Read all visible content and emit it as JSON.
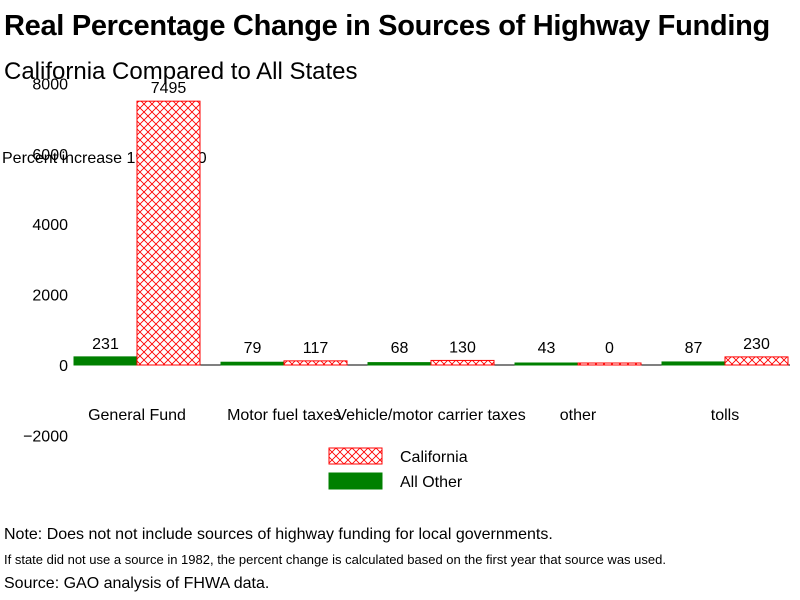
{
  "chart_data": {
    "type": "bar",
    "title": "Real Percentage Change in Sources of Highway Funding",
    "subtitle": "California Compared to All States",
    "ylabel": "Percent increase 1982–2000",
    "categories": [
      "General Fund",
      "Motor fuel taxes",
      "Vehicle/motor carrier taxes",
      "other",
      "tolls"
    ],
    "series": [
      {
        "name": "All Other",
        "values": [
          231,
          79,
          68,
          43,
          87
        ],
        "color": "#008000",
        "pattern": "solid"
      },
      {
        "name": "California",
        "values": [
          7495,
          117,
          130,
          0,
          230
        ],
        "color": "#ff0000",
        "pattern": "crosshatch"
      }
    ],
    "data_labels": {
      "All Other": [
        "231",
        "79",
        "68",
        "43",
        "87"
      ],
      "California": [
        "7495",
        "117",
        "130",
        "0",
        "230"
      ]
    },
    "ylim": [
      -2000,
      8000
    ],
    "yticks": [
      -2000,
      0,
      2000,
      4000,
      6000,
      8000
    ],
    "ytick_labels": [
      "−2000",
      "0",
      "2000",
      "4000",
      "6000",
      "8000"
    ],
    "grid": false,
    "legend": {
      "placement": "bottom-center",
      "entries": [
        "California",
        "All Other"
      ]
    }
  },
  "notes": {
    "note1": "Note: Does not not include sources of highway funding for local governments.",
    "note2": "If state did not use a source in 1982, the percent change is calculated based on the first year that source was used.",
    "source": "Source: GAO analysis of FHWA data."
  }
}
